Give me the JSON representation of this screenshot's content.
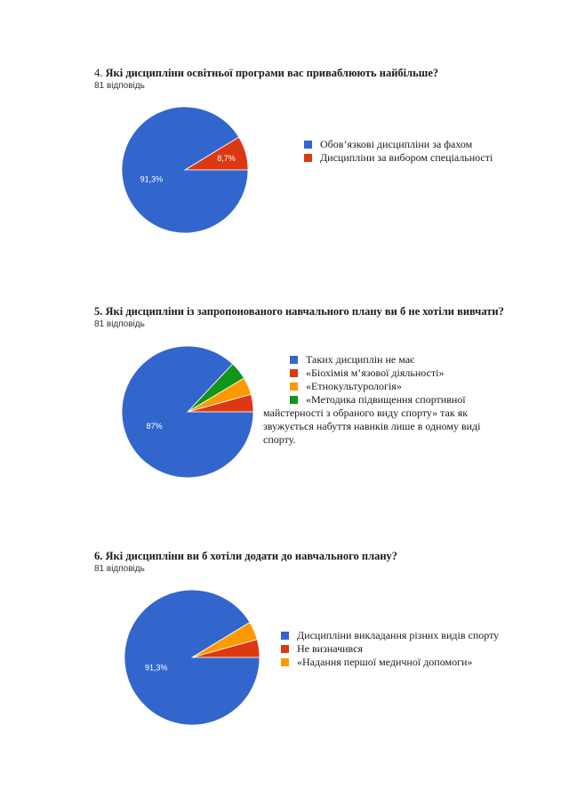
{
  "colors": {
    "blue": "#3366cc",
    "red": "#dc3912",
    "orange": "#ff9900",
    "green": "#109618"
  },
  "questions": [
    {
      "number": "4.",
      "title": "Які дисципліни освітньої програми вас приваблюють найбільше?",
      "responses": "81 відповідь",
      "legend": [
        {
          "label": "Обов’язкові дисципліни за фахом",
          "color": "#3366cc"
        },
        {
          "label": "Дисципліни за вибором спеціальності",
          "color": "#dc3912"
        }
      ]
    },
    {
      "number": "5.",
      "title": "Які дисципліни із запропонованого навчального плану ви б не хотіли вивчати?",
      "responses": "81 відповідь",
      "legend": [
        {
          "label": " Таких дисциплін не має",
          "color": "#3366cc"
        },
        {
          "label": "«Біохімія м’язової діяльності»",
          "color": "#dc3912"
        },
        {
          "label": "«Етнокультурологія»",
          "color": "#ff9900"
        },
        {
          "label": "«Методика підвищення спортивної",
          "color": "#109618"
        }
      ],
      "legend_continuation": "майстерності з обраного виду спорту» так як звужується набуття навиків лише в одному виді спорту."
    },
    {
      "number": "6.",
      "title": "Які дисципліни ви б хотіли додати до навчального плану?",
      "responses": "81 відповідь",
      "legend": [
        {
          "label": "Дисципліни викладання різних видів спорту",
          "color": "#3366cc"
        },
        {
          "label": "Не визначився",
          "color": "#dc3912"
        },
        {
          "label": "«Надання першої медичної допомоги»",
          "color": "#ff9900"
        }
      ]
    }
  ],
  "chart_data": [
    {
      "type": "pie",
      "title": "Які дисципліни освітньої програми вас приваблюють найбільше?",
      "categories": [
        "Обов’язкові дисципліни за фахом",
        "Дисципліни за вибором спеціальності"
      ],
      "values": [
        91.3,
        8.7
      ],
      "labels": [
        "91,3%",
        "8,7%"
      ],
      "colors": [
        "#3366cc",
        "#dc3912"
      ],
      "legend": "right"
    },
    {
      "type": "pie",
      "title": "Які дисципліни із запропонованого навчального плану ви б не хотіли вивчати?",
      "categories": [
        "Таких дисциплін не має",
        "«Біохімія м’язової діяльності»",
        "«Етнокультурологія»",
        "«Методика підвищення спортивної майстерності з обраного виду спорту»"
      ],
      "values": [
        87,
        4.3,
        4.3,
        4.4
      ],
      "labels": [
        "87%",
        "",
        "",
        ""
      ],
      "colors": [
        "#3366cc",
        "#dc3912",
        "#ff9900",
        "#109618"
      ],
      "legend": "right"
    },
    {
      "type": "pie",
      "title": "Які дисципліни ви б хотіли додати до навчального плану?",
      "categories": [
        "Дисципліни викладання різних видів спорту",
        "Не визначився",
        "«Надання першої медичної допомоги»"
      ],
      "values": [
        91.3,
        4.3,
        4.4
      ],
      "labels": [
        "91,3%",
        "",
        ""
      ],
      "colors": [
        "#3366cc",
        "#dc3912",
        "#ff9900"
      ],
      "legend": "right"
    }
  ]
}
